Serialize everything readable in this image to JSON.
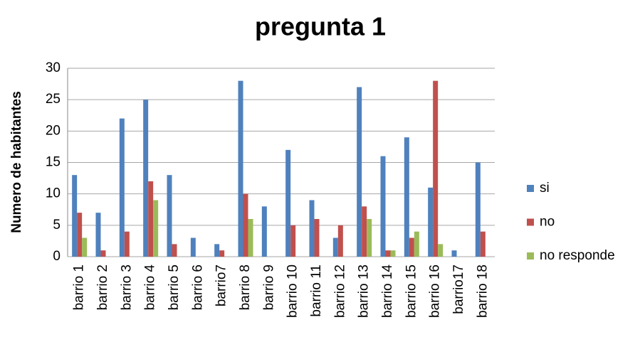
{
  "chart_data": {
    "type": "bar",
    "title": "pregunta 1",
    "y_label": "Numero de habitantes",
    "categories": [
      "barrio 1",
      "barrio 2",
      "barrio 3",
      "barrio 4",
      "barrio 5",
      "barrio 6",
      "barrio7",
      "barrio 8",
      "barrio 9",
      "barrio 10",
      "barrio 11",
      "barrio 12",
      "barrio 13",
      "barrio 14",
      "barrio 15",
      "barrio 16",
      "barrio17",
      "barrio 18"
    ],
    "series": [
      {
        "name": "si",
        "color": "#4f81bd",
        "values": [
          13,
          7,
          22,
          25,
          13,
          3,
          2,
          28,
          8,
          17,
          9,
          3,
          27,
          16,
          19,
          11,
          1,
          15
        ]
      },
      {
        "name": "no",
        "color": "#c0504d",
        "values": [
          7,
          1,
          4,
          12,
          2,
          0,
          1,
          10,
          0,
          5,
          6,
          5,
          8,
          1,
          3,
          28,
          0,
          4
        ]
      },
      {
        "name": "no responde",
        "color": "#9bbb59",
        "values": [
          3,
          0,
          0,
          9,
          0,
          0,
          0,
          6,
          0,
          0,
          0,
          0,
          6,
          1,
          4,
          2,
          0,
          0
        ]
      }
    ],
    "ylim": [
      0,
      30
    ],
    "yticks": [
      0,
      5,
      10,
      15,
      20,
      25,
      30
    ],
    "grid": true,
    "legend": "right"
  }
}
